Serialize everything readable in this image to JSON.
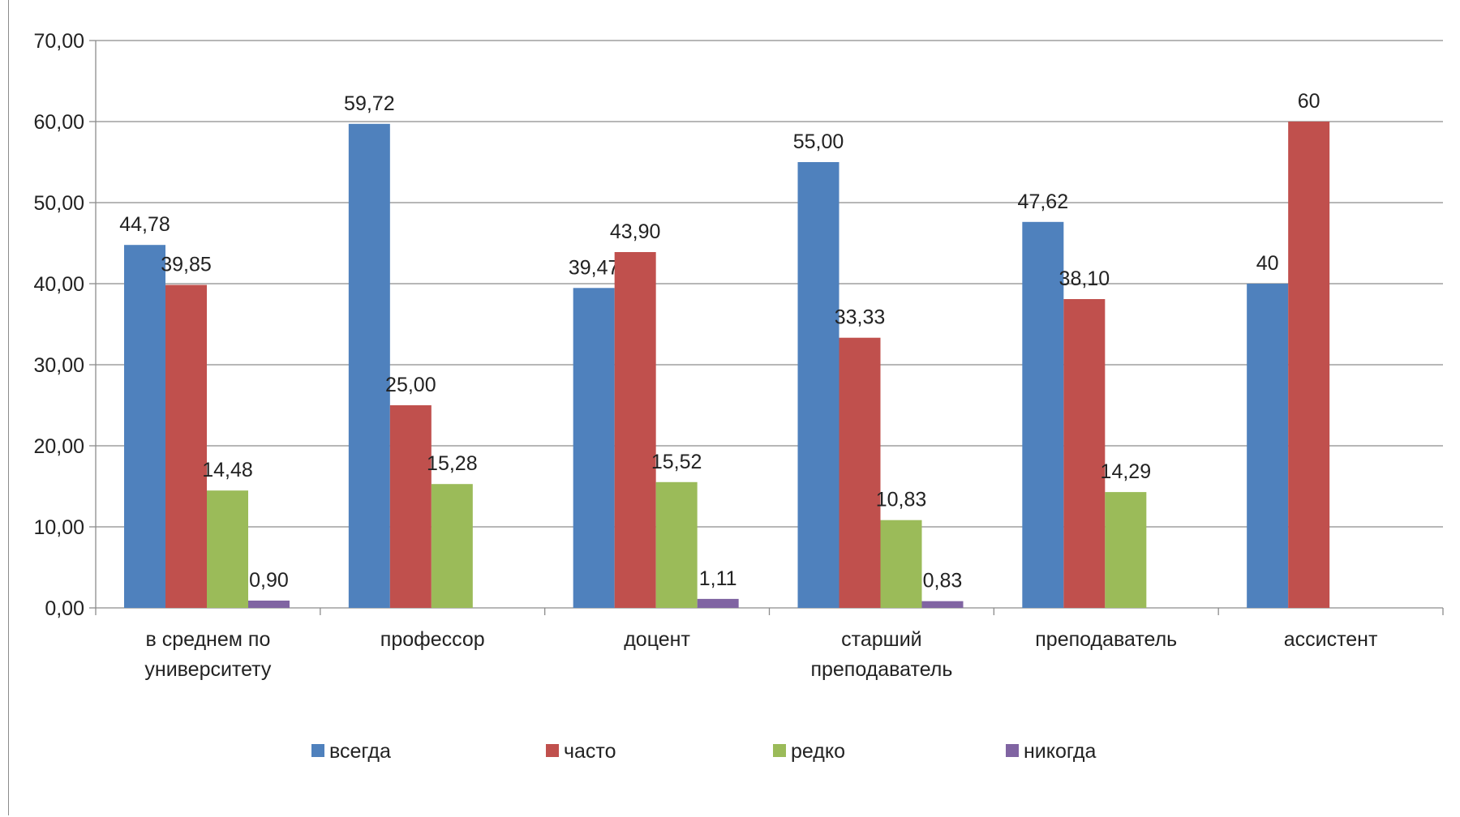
{
  "chart_data": {
    "type": "bar",
    "categories": [
      [
        "в среднем по",
        "университету"
      ],
      [
        "профессор"
      ],
      [
        "доцент"
      ],
      [
        "старший",
        "преподаватель"
      ],
      [
        "преподаватель"
      ],
      [
        "ассистент"
      ]
    ],
    "series": [
      {
        "name": "всегда",
        "color": "#4f81bd",
        "values": [
          44.78,
          59.72,
          39.47,
          55.0,
          47.62,
          40
        ],
        "labels": [
          "44,78",
          "59,72",
          "39,47",
          "55,00",
          "47,62",
          "40"
        ]
      },
      {
        "name": "часто",
        "color": "#c0504d",
        "values": [
          39.85,
          25.0,
          43.9,
          33.33,
          38.1,
          60
        ],
        "labels": [
          "39,85",
          "25,00",
          "43,90",
          "33,33",
          "38,10",
          "60"
        ]
      },
      {
        "name": "редко",
        "color": "#9bbb59",
        "values": [
          14.48,
          15.28,
          15.52,
          10.83,
          14.29,
          null
        ],
        "labels": [
          "14,48",
          "15,28",
          "15,52",
          "10,83",
          "14,29",
          null
        ]
      },
      {
        "name": "никогда",
        "color": "#8064a2",
        "values": [
          0.9,
          null,
          1.11,
          0.83,
          null,
          null
        ],
        "labels": [
          "0,90",
          null,
          "1,11",
          "0,83",
          null,
          null
        ]
      }
    ],
    "yticks": [
      "0,00",
      "10,00",
      "20,00",
      "30,00",
      "40,00",
      "50,00",
      "60,00",
      "70,00"
    ],
    "ylim": [
      0,
      70
    ],
    "grid": true,
    "legend_position": "bottom"
  }
}
